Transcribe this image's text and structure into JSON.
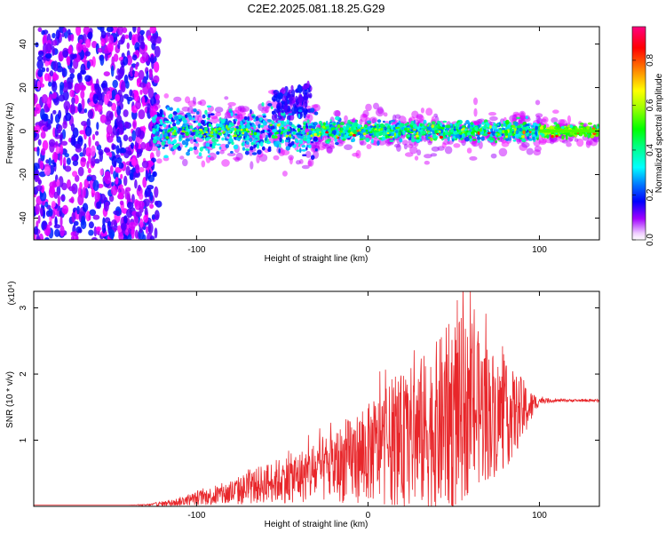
{
  "title": "C2E2.2025.081.18.25.G29",
  "chart_data": [
    {
      "type": "heatmap",
      "xlabel": "Height of straight line (km)",
      "ylabel": "Frequency (Hz)",
      "xlim": [
        -195,
        135
      ],
      "ylim": [
        -50,
        48
      ],
      "xticks": [
        -100,
        0,
        100
      ],
      "yticks": [
        -40,
        -20,
        0,
        20,
        40
      ],
      "grid": false,
      "colorbar": {
        "label": "Normalized spectral amplitude",
        "range": [
          0,
          0.95
        ],
        "ticks": [
          0.0,
          0.2,
          0.4,
          0.6,
          0.8
        ],
        "colormap": [
          "#ffffff",
          "#ff00ff",
          "#8000ff",
          "#0000ff",
          "#0080ff",
          "#00ffff",
          "#00ff80",
          "#00ff00",
          "#80ff00",
          "#ffff00",
          "#ff8000",
          "#ff0000",
          "#ff0080"
        ]
      },
      "regions": [
        {
          "x_range": [
            -195,
            -122
          ],
          "f_range": [
            -50,
            48
          ],
          "amplitude": 0.12
        },
        {
          "x_range": [
            -122,
            -30
          ],
          "f_range": [
            -10,
            10
          ],
          "amplitude": 0.3
        },
        {
          "x_range": [
            -52,
            -33
          ],
          "f_range": [
            5,
            20
          ],
          "amplitude": 0.15
        },
        {
          "x_range": [
            -30,
            100
          ],
          "f_range": [
            -4,
            4
          ],
          "amplitude": 0.4
        },
        {
          "x_range": [
            100,
            135
          ],
          "f_range": [
            -3,
            3
          ],
          "amplitude": 0.6
        }
      ]
    },
    {
      "type": "line",
      "xlabel": "Height of straight line (km)",
      "ylabel": "SNR (10 * v/v)",
      "y_multiplier": "(x10⁴)",
      "xlim": [
        -195,
        135
      ],
      "ylim": [
        0,
        3.25
      ],
      "xticks": [
        -100,
        0,
        100
      ],
      "yticks": [
        1,
        2,
        3
      ],
      "color": "#e8262a",
      "envelope": {
        "x": [
          -195,
          -140,
          -130,
          -115,
          -100,
          -80,
          -60,
          -40,
          -20,
          0,
          20,
          40,
          50,
          60,
          80,
          90,
          95,
          100,
          110,
          120,
          135
        ],
        "y_mean": [
          0.02,
          0.02,
          0.02,
          0.05,
          0.12,
          0.2,
          0.35,
          0.45,
          0.6,
          0.8,
          1.0,
          1.2,
          1.4,
          1.5,
          1.35,
          1.45,
          1.5,
          1.6,
          1.6,
          1.6,
          1.6
        ],
        "y_spread": [
          0.0,
          0.0,
          0.01,
          0.05,
          0.1,
          0.2,
          0.3,
          0.4,
          0.55,
          0.75,
          1.0,
          1.3,
          1.5,
          1.3,
          0.8,
          0.5,
          0.25,
          0.05,
          0.02,
          0.02,
          0.02
        ]
      }
    }
  ]
}
